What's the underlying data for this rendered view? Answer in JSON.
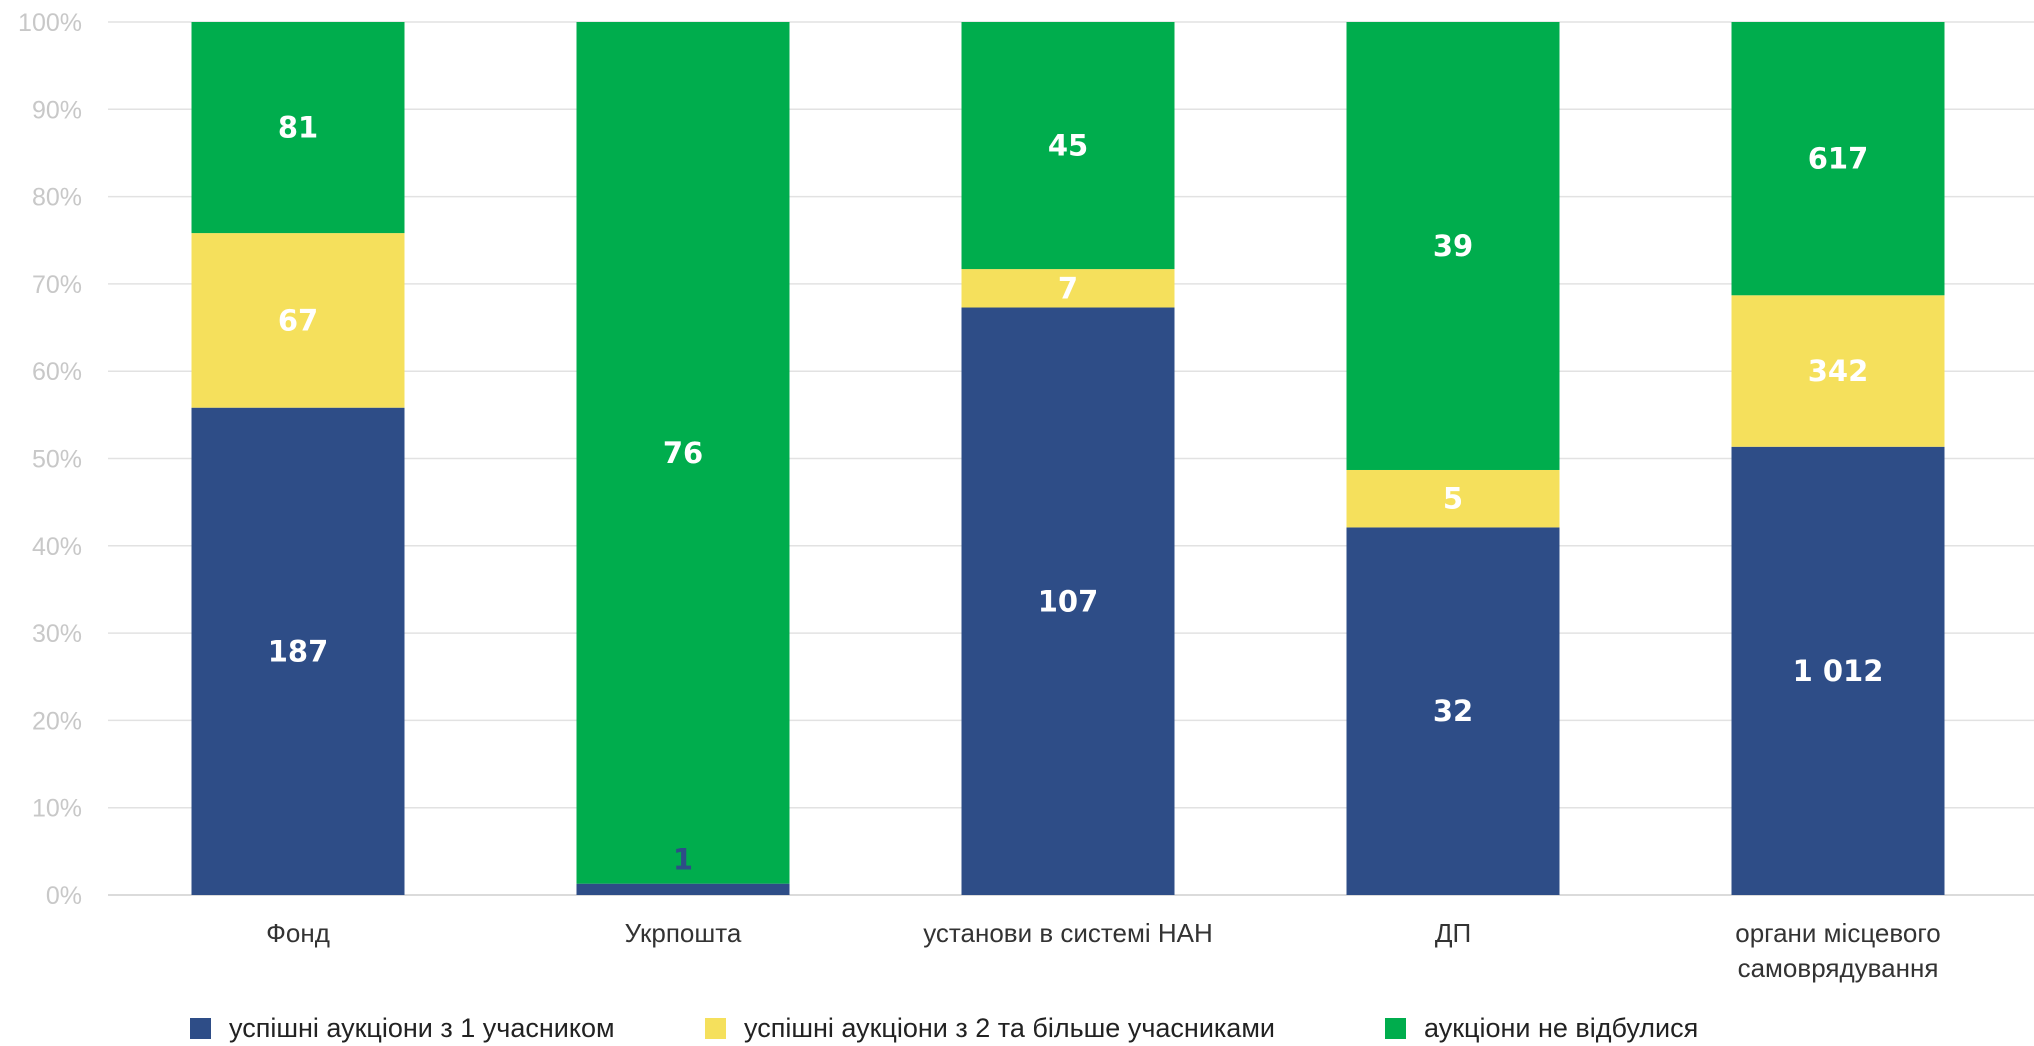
{
  "chart_data": {
    "type": "bar",
    "stacked": "percent",
    "categories": [
      "Фонд",
      "Укрпошта",
      "установи в системі НАН",
      "ДП",
      "органи місцевого самоврядування"
    ],
    "series": [
      {
        "name": "успішні аукціони з 1 учасником",
        "color": "#2e4d87",
        "values": [
          187,
          1,
          107,
          32,
          1012
        ],
        "labels": [
          "187",
          "1",
          "107",
          "32",
          "1 012"
        ]
      },
      {
        "name": "успішні аукціони з 2 та більше учасниками",
        "color": "#f5e05c",
        "values": [
          67,
          0,
          7,
          5,
          342
        ],
        "labels": [
          "67",
          "",
          "7",
          "5",
          "342"
        ]
      },
      {
        "name": "аукціони не відбулися",
        "color": "#00ad4d",
        "values": [
          81,
          76,
          45,
          39,
          617
        ],
        "labels": [
          "81",
          "76",
          "45",
          "39",
          "617"
        ]
      }
    ],
    "y_ticks": [
      "0%",
      "10%",
      "20%",
      "30%",
      "40%",
      "50%",
      "60%",
      "70%",
      "80%",
      "90%",
      "100%"
    ],
    "ylim": [
      0,
      100
    ],
    "grid": true,
    "legend_position": "bottom"
  }
}
